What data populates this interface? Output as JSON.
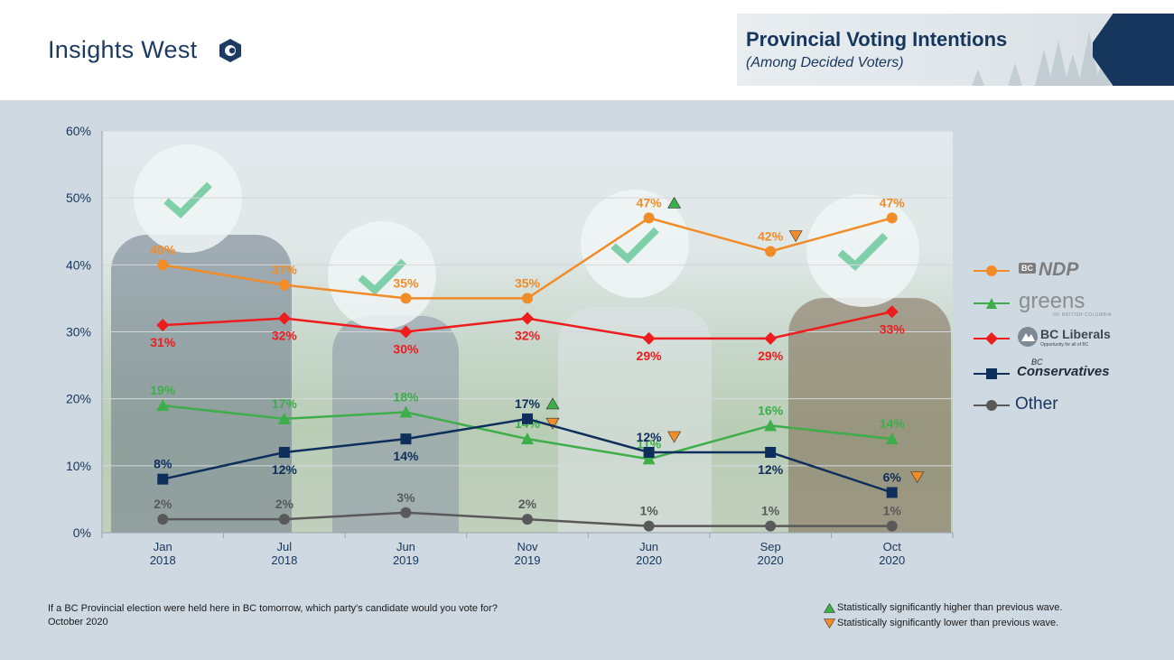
{
  "header": {
    "brand": "Insights West",
    "title": "Provincial Voting Intentions",
    "subtitle": "(Among Decided Voters)"
  },
  "colors": {
    "navy": "#17365d",
    "ndp": "#f28c28",
    "greens": "#3dae49",
    "liberals": "#ee1c1c",
    "conservatives": "#0e2f5c",
    "other": "#595959",
    "sig_up": "#3dae49",
    "sig_down": "#f28c28"
  },
  "chart_data": {
    "type": "line",
    "categories": [
      "Jan\n2018",
      "Jul\n2018",
      "Jun\n2019",
      "Nov\n2019",
      "Jun\n2020",
      "Sep\n2020",
      "Oct\n2020"
    ],
    "ylim": [
      0,
      60
    ],
    "yticks": [
      "0%",
      "10%",
      "20%",
      "30%",
      "40%",
      "50%",
      "60%"
    ],
    "grid": true,
    "legend_position": "right",
    "series": [
      {
        "name": "NDP",
        "key": "ndp",
        "marker": "circle",
        "values": [
          40,
          37,
          35,
          35,
          47,
          42,
          47
        ],
        "label_pos": "above",
        "sig": [
          null,
          null,
          null,
          null,
          "up",
          "down",
          null
        ]
      },
      {
        "name": "greens",
        "key": "greens",
        "marker": "triangle",
        "values": [
          19,
          17,
          18,
          14,
          11,
          16,
          14
        ],
        "label_pos": "above",
        "sig": [
          null,
          null,
          null,
          "down",
          null,
          null,
          null
        ]
      },
      {
        "name": "BC Liberals",
        "key": "liberals",
        "marker": "diamond",
        "values": [
          31,
          32,
          30,
          32,
          29,
          29,
          33
        ],
        "label_pos": "below",
        "sig": [
          null,
          null,
          null,
          null,
          null,
          null,
          null
        ]
      },
      {
        "name": "Conservatives",
        "key": "conservatives",
        "marker": "square",
        "values": [
          8,
          12,
          14,
          17,
          12,
          12,
          6
        ],
        "label_pos": [
          "above",
          "below",
          "below",
          "above",
          "above",
          "below",
          "above"
        ],
        "sig": [
          null,
          null,
          null,
          "up",
          "down",
          null,
          "down"
        ]
      },
      {
        "name": "Other",
        "key": "other",
        "marker": "circle",
        "values": [
          2,
          2,
          3,
          2,
          1,
          1,
          1
        ],
        "label_pos": "above",
        "sig": [
          null,
          null,
          null,
          null,
          null,
          null,
          null
        ]
      }
    ]
  },
  "legend": {
    "ndp": "NDP",
    "ndp_badge": "BC",
    "greens": "greens",
    "greens_sub": "OF BRITISH COLUMBIA",
    "liberals": "BC Liberals",
    "liberals_sub": "Opportunity for all of BC",
    "conservatives_prefix": "BC",
    "conservatives": "Conservatives",
    "other": "Other"
  },
  "footer": {
    "question": "If a BC Provincial election were held here in BC tomorrow, which party's candidate would you vote for?",
    "date": "October 2020",
    "sig_higher": "Statistically significantly higher than previous wave.",
    "sig_lower": "Statistically significantly lower than previous wave."
  }
}
